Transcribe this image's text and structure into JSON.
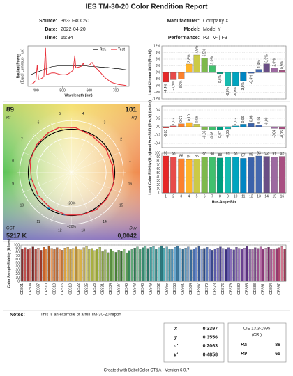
{
  "header": {
    "title": "IES TM-30-20 Color Rendition Report"
  },
  "info": {
    "left": [
      [
        "Source:",
        "363- F40C50"
      ],
      [
        "Date:",
        "2022-04-20"
      ],
      [
        "Time:",
        "15:34"
      ]
    ],
    "right": [
      [
        "Manufacturer:",
        "Company X"
      ],
      [
        "Model:",
        "Model Y"
      ],
      [
        "Performance:",
        "P2 | V- | F3"
      ]
    ]
  },
  "chart_data": [
    {
      "type": "line",
      "xlabel": "Wavelength (nm)",
      "ylabel": [
        "Radiant Power",
        "(Equal Luminous Flux)"
      ],
      "x": [
        380,
        390,
        400,
        405,
        410,
        420,
        430,
        436,
        440,
        450,
        460,
        470,
        480,
        490,
        500,
        510,
        520,
        530,
        540,
        546,
        550,
        560,
        570,
        578,
        580,
        590,
        600,
        611,
        620,
        630,
        640,
        650,
        660,
        670,
        680,
        690,
        700,
        710,
        720,
        730,
        740
      ],
      "series": [
        {
          "name": "Ref.",
          "color": "#000000",
          "values": [
            0.3,
            0.33,
            0.36,
            0.37,
            0.38,
            0.41,
            0.44,
            0.45,
            0.46,
            0.49,
            0.51,
            0.52,
            0.53,
            0.53,
            0.53,
            0.53,
            0.53,
            0.53,
            0.53,
            0.53,
            0.53,
            0.53,
            0.53,
            0.53,
            0.53,
            0.53,
            0.52,
            0.52,
            0.51,
            0.51,
            0.5,
            0.5,
            0.49,
            0.49,
            0.48,
            0.47,
            0.46,
            0.46,
            0.45,
            0.44,
            0.43
          ]
        },
        {
          "name": "Test",
          "color": "#e8303a",
          "values": [
            0.05,
            0.08,
            0.15,
            0.55,
            0.18,
            0.2,
            0.25,
            1.0,
            0.3,
            0.33,
            0.35,
            0.35,
            0.33,
            0.31,
            0.3,
            0.3,
            0.32,
            0.36,
            0.42,
            0.8,
            0.48,
            0.5,
            0.52,
            0.6,
            0.55,
            0.55,
            0.55,
            0.62,
            0.52,
            0.45,
            0.38,
            0.3,
            0.22,
            0.17,
            0.12,
            0.09,
            0.07,
            0.05,
            0.04,
            0.03,
            0.02
          ]
        }
      ],
      "xlim": [
        370,
        750
      ],
      "xticks": [
        400,
        500,
        600,
        700
      ],
      "ylim": [
        0,
        1.05
      ],
      "legend": "top-right"
    },
    {
      "type": "bar",
      "ylabel": "Local Chroma Shift (Rcs,hj)",
      "values": [
        -4.4,
        -3.3,
        -3.0,
        3.8,
        7.9,
        6.5,
        3.0,
        -0.6,
        -6.0,
        -6.0,
        -3.8,
        -0.4,
        1.4,
        3.9,
        2.0,
        0.9
      ],
      "value_labels": [
        "-4,4%",
        "-3,3%",
        "-3,0%",
        "3,8%",
        "7,9%",
        "6,5%",
        "3,0%",
        "-0,6%",
        "-6,0%",
        "-6,0%",
        "-3,8%",
        "-0,4%",
        "1,4%",
        "3,9%",
        "2,0%",
        "0,9%"
      ],
      "colors": [
        "#e62828",
        "#e74b4b",
        "#fb812e",
        "#ffb529",
        "#cbca46",
        "#7eb94c",
        "#41c06d",
        "#009c7c",
        "#16bcb0",
        "#00a4bf",
        "#0085c3",
        "#3b62aa",
        "#4568ae",
        "#6a4e85",
        "#9d69a1",
        "#a74f81"
      ],
      "ylim": [
        -12,
        12
      ],
      "yticks": [
        {
          "value": 12,
          "label": "12%"
        },
        {
          "value": 9,
          "label": "9%"
        },
        {
          "value": 6,
          "label": "6%"
        },
        {
          "value": 3,
          "label": "3%"
        },
        {
          "value": 0,
          "label": "0%"
        },
        {
          "value": -3,
          "label": "-3%"
        },
        {
          "value": -6,
          "label": "-6%"
        },
        {
          "value": -9,
          "label": "-9%"
        },
        {
          "value": -12,
          "label": "-12%"
        }
      ],
      "grid": true,
      "label_rotate": true
    },
    {
      "type": "vector",
      "rf": 89,
      "rf_label": "Rf",
      "rg": 101,
      "rg_label": "Rg",
      "cct_label": "CCT",
      "cct": "5217 K",
      "duv_label": "Duv",
      "duv": "0,0042",
      "ring_labels": [
        "-20%",
        "+20%"
      ],
      "bins": [
        "1",
        "2",
        "3",
        "4",
        "5",
        "6",
        "7",
        "8",
        "9",
        "10",
        "11",
        "12",
        "13",
        "14",
        "15",
        "16"
      ]
    },
    {
      "type": "bar",
      "ylabel": "Local Hue Shift (Rhs,hj) (radian)",
      "values": [
        -0.03,
        0.02,
        0.07,
        0.1,
        0.06,
        -0.06,
        -0.08,
        -0.07,
        -0.05,
        0.02,
        0.06,
        0.08,
        0.04,
        -0.0,
        -0.04,
        -0.05
      ],
      "value_labels": [
        "-0,03",
        "0,02",
        "0,07",
        "0,10",
        "0,06",
        "-0,06",
        "-0,08",
        "-0,07",
        "-0,05",
        "0,02",
        "0,06",
        "0,08",
        "0,04",
        "-0,00",
        "-0,04",
        "-0,05"
      ],
      "colors": [
        "#e62828",
        "#e74b4b",
        "#fb812e",
        "#ffb529",
        "#cbca46",
        "#7eb94c",
        "#41c06d",
        "#009c7c",
        "#16bcb0",
        "#00a4bf",
        "#0085c3",
        "#3b62aa",
        "#4568ae",
        "#6a4e85",
        "#9d69a1",
        "#a74f81"
      ],
      "ylim": [
        -0.5,
        0.5
      ],
      "yticks": [
        {
          "value": 0.4,
          "label": "0,4"
        },
        {
          "value": 0.2,
          "label": "0,2"
        },
        {
          "value": 0,
          "label": "0,0"
        },
        {
          "value": -0.2,
          "label": "-0,2"
        },
        {
          "value": -0.4,
          "label": "-0,4"
        }
      ],
      "grid": true,
      "label_rotate": true
    },
    {
      "type": "bar",
      "ylabel": "Local Color Fidelity (Rf,hj)",
      "xlabel": "Hue-Angle Bin",
      "categories": [
        "1",
        "2",
        "3",
        "4",
        "5",
        "6",
        "7",
        "8",
        "9",
        "10",
        "11",
        "12",
        "13",
        "14",
        "15",
        "16"
      ],
      "values": [
        93,
        90,
        86,
        84,
        85,
        90,
        90,
        88,
        91,
        90,
        87,
        89,
        93,
        92,
        91,
        92
      ],
      "colors": [
        "#e62828",
        "#e74b4b",
        "#fb812e",
        "#ffb529",
        "#cbca46",
        "#7eb94c",
        "#41c06d",
        "#009c7c",
        "#16bcb0",
        "#00a4bf",
        "#0085c3",
        "#3b62aa",
        "#4568ae",
        "#6a4e85",
        "#9d69a1",
        "#a74f81"
      ],
      "ylim": [
        0,
        100
      ],
      "yticks": [
        0,
        10,
        20,
        30,
        40,
        50,
        60,
        70,
        80,
        90,
        100
      ],
      "grid": true,
      "data_labels": true
    },
    {
      "type": "bar",
      "ylabel": "Color Sample Fidelity (Rf,ces)",
      "categories": [
        "CES01",
        null,
        null,
        "CES04",
        null,
        null,
        "CES07",
        null,
        null,
        "CES10",
        null,
        null,
        "CES13",
        null,
        null,
        "CES16",
        null,
        null,
        "CES19",
        null,
        null,
        "CES22",
        null,
        null,
        "CES25",
        null,
        null,
        "CES28",
        null,
        null,
        "CES31",
        null,
        null,
        "CES34",
        null,
        null,
        "CES37",
        null,
        null,
        "CES40",
        null,
        null,
        "CES43",
        null,
        null,
        "CES46",
        null,
        null,
        "CES49",
        null,
        null,
        "CES52",
        null,
        null,
        "CES55",
        null,
        null,
        "CES58",
        null,
        null,
        "CES61",
        null,
        null,
        "CES64",
        null,
        null,
        "CES67",
        null,
        null,
        "CES70",
        null,
        null,
        "CES73",
        null,
        null,
        "CES76",
        null,
        null,
        "CES79",
        null,
        null,
        "CES82",
        null,
        null,
        "CES85",
        null,
        null,
        "CES88",
        null,
        null,
        "CES91",
        null,
        null,
        "CES94",
        null,
        null,
        "CES97",
        null,
        null
      ],
      "values": [
        90,
        93,
        88,
        91,
        95,
        89,
        92,
        86,
        94,
        90,
        97,
        91,
        88,
        93,
        90,
        86,
        92,
        94,
        89,
        91,
        95,
        90,
        87,
        93,
        96,
        88,
        91,
        85,
        90,
        94,
        82,
        87,
        79,
        88,
        84,
        80,
        86,
        83,
        90,
        78,
        85,
        88,
        92,
        95,
        90,
        93,
        97,
        91,
        94,
        96,
        89,
        93,
        98,
        92,
        95,
        90,
        88,
        94,
        97,
        91,
        89,
        92,
        95,
        87,
        90,
        93,
        96,
        88,
        91,
        94,
        90,
        86,
        89,
        92,
        95,
        91,
        88,
        93,
        90,
        87,
        94,
        91,
        89,
        92,
        96,
        90,
        88,
        93,
        91,
        95,
        89,
        92,
        94,
        90,
        88,
        91,
        93,
        96,
        90
      ],
      "colors": [
        "#8b2e2e",
        "#c0504d",
        "#a33b3b",
        "#d9837a",
        "#7a2424",
        "#b84a40",
        "#e09a8c",
        "#9c3a2a",
        "#c8622a",
        "#e08a4a",
        "#a8551f",
        "#f0a060",
        "#d07030",
        "#b86a3a",
        "#e8a070",
        "#c97a3c",
        "#d9a040",
        "#e8b850",
        "#c89a3a",
        "#f0c860",
        "#b8903a",
        "#e0c070",
        "#d8b048",
        "#c8b060",
        "#d8d070",
        "#b8b850",
        "#a8b040",
        "#c8c878",
        "#98a838",
        "#b0c060",
        "#88a040",
        "#a0b868",
        "#78a048",
        "#5a9040",
        "#8ab870",
        "#4a8038",
        "#6aa058",
        "#3a7030",
        "#90c080",
        "#5a9858",
        "#3a8a5a",
        "#60a878",
        "#2a7a50",
        "#80c098",
        "#4a9a70",
        "#3a8870",
        "#70b8a0",
        "#2a7868",
        "#40a0a0",
        "#60b8b8",
        "#308888",
        "#80c8c8",
        "#2a7a80",
        "#50a8b0",
        "#70b0c0",
        "#3a90a0",
        "#4a90b8",
        "#6aa8d0",
        "#3a78a0",
        "#88b8d8",
        "#2a6890",
        "#5a98c0",
        "#7aa0c8",
        "#3a6a98",
        "#4a70b0",
        "#6a88c8",
        "#3a5a98",
        "#8aa0d0",
        "#2a4a88",
        "#5a78b8",
        "#7a80c0",
        "#3a4890",
        "#5a5aa8",
        "#7a70c0",
        "#4a4090",
        "#9a90d0",
        "#3a3080",
        "#6a60b0",
        "#8a70b8",
        "#5a4898",
        "#7a5aa8",
        "#9a78c0",
        "#6a4090",
        "#b090c8",
        "#5a3080",
        "#8a60a8",
        "#a870a8",
        "#7a4888",
        "#9a5090",
        "#b870a8",
        "#8a3878",
        "#c890b8",
        "#7a2868",
        "#a85890",
        "#c06890",
        "#983a70",
        "#b04a70",
        "#d07890",
        "#a03a58"
      ],
      "ylim": [
        0,
        100
      ],
      "yticks": [
        0,
        10,
        20,
        30,
        40,
        50,
        60,
        70,
        80,
        90,
        100
      ],
      "grid": true,
      "xlabel_rotate": true
    }
  ],
  "notes": {
    "label": "Notes:",
    "text": "This is an example of a full TM-30-20 report"
  },
  "chromaticity": {
    "rows": [
      [
        "x",
        "0,3397"
      ],
      [
        "y",
        "0,3556"
      ],
      [
        "u'",
        "0,2063"
      ],
      [
        "v'",
        "0,4858"
      ]
    ]
  },
  "cri": {
    "title": "CIE 13.3-1995",
    "subtitle": "(CRI)",
    "rows": [
      [
        "Ra",
        "88"
      ],
      [
        "R9",
        "65"
      ]
    ]
  },
  "footer": {
    "text": "Created with BabelColor CT&A - Version 6.0.7"
  }
}
